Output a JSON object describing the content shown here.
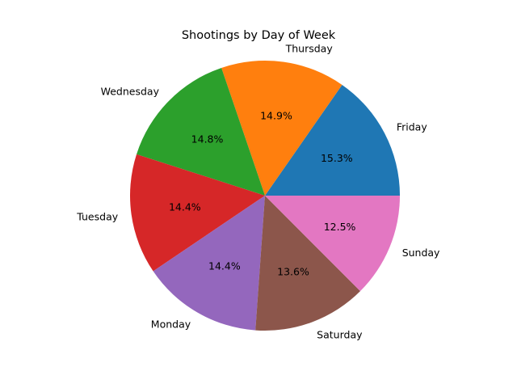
{
  "chart_data": {
    "type": "pie",
    "title": "Shootings by Day of Week",
    "categories": [
      "Friday",
      "Thursday",
      "Wednesday",
      "Tuesday",
      "Monday",
      "Saturday",
      "Sunday"
    ],
    "values": [
      15.3,
      14.9,
      14.8,
      14.4,
      14.4,
      13.6,
      12.5
    ],
    "percent_labels": [
      "15.3%",
      "14.9%",
      "14.8%",
      "14.4%",
      "14.4%",
      "13.6%",
      "12.5%"
    ],
    "colors": [
      "#1f77b4",
      "#ff7f0e",
      "#2ca02c",
      "#d62728",
      "#9467bd",
      "#8c564b",
      "#e377c2"
    ],
    "start_angle_deg": 0,
    "direction": "counterclockwise",
    "legend": "none"
  }
}
